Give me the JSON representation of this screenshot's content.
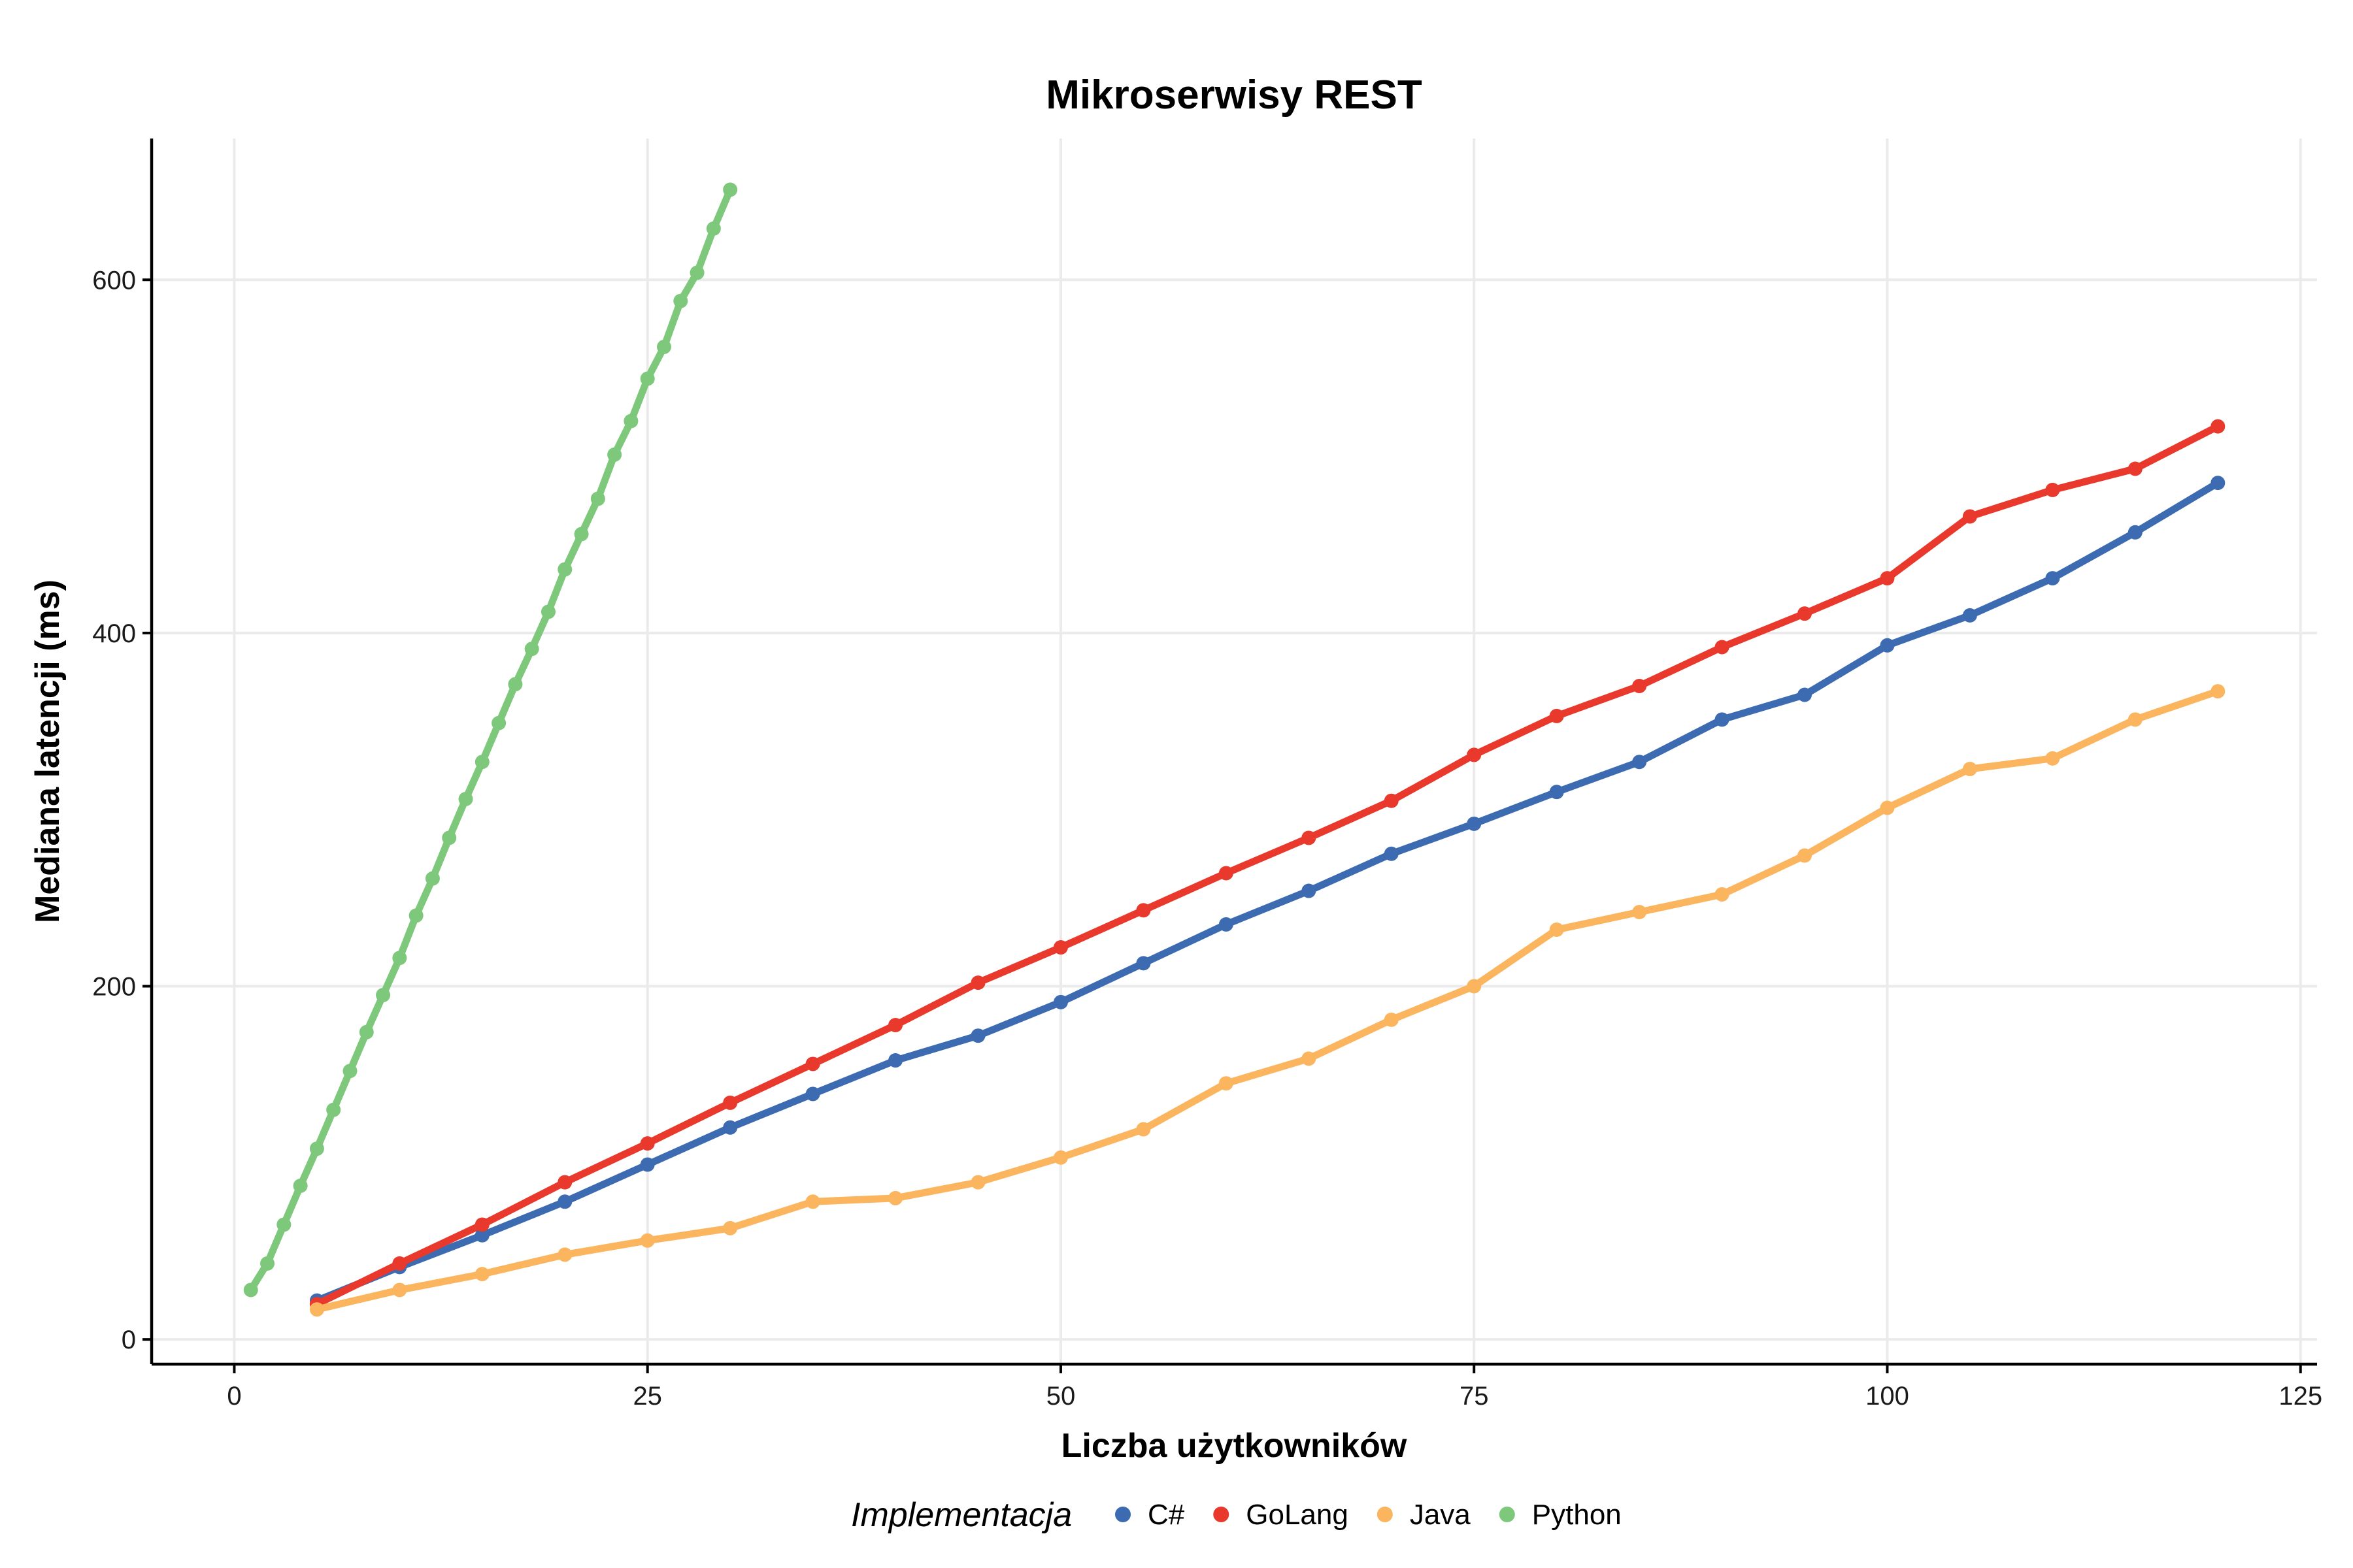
{
  "chart_data": {
    "type": "line",
    "title": "Mikroserwisy REST",
    "xlabel": "Liczba użytkowników",
    "ylabel": "Mediana latencji (ms)",
    "xlim": [
      -5,
      126
    ],
    "ylim": [
      -14,
      680
    ],
    "x_ticks": [
      0,
      25,
      50,
      75,
      100,
      125
    ],
    "y_ticks": [
      0,
      200,
      400,
      600
    ],
    "x_tick_labels": [
      "0",
      "25",
      "50",
      "75",
      "100",
      "125"
    ],
    "y_tick_labels": [
      "0",
      "200",
      "400",
      "600"
    ],
    "grid": true,
    "legend": {
      "title": "Implementacja",
      "position": "bottom"
    },
    "series": [
      {
        "name": "C#",
        "color": "#3c6bb1",
        "x": [
          5,
          10,
          15,
          20,
          25,
          30,
          35,
          40,
          45,
          50,
          55,
          60,
          65,
          70,
          75,
          80,
          85,
          90,
          95,
          100,
          105,
          110,
          115,
          120
        ],
        "y": [
          22,
          41,
          59,
          78,
          99,
          120,
          139,
          158,
          172,
          191,
          213,
          235,
          254,
          275,
          292,
          310,
          327,
          351,
          365,
          393,
          410,
          431,
          457,
          485
        ]
      },
      {
        "name": "GoLang",
        "color": "#e8392c",
        "x": [
          5,
          10,
          15,
          20,
          25,
          30,
          35,
          40,
          45,
          50,
          55,
          60,
          65,
          70,
          75,
          80,
          85,
          90,
          95,
          100,
          105,
          110,
          115,
          120
        ],
        "y": [
          20,
          43,
          65,
          89,
          111,
          134,
          156,
          178,
          202,
          222,
          243,
          264,
          284,
          305,
          331,
          353,
          370,
          392,
          411,
          431,
          466,
          481,
          493,
          517
        ]
      },
      {
        "name": "Java",
        "color": "#fbb55f",
        "x": [
          5,
          10,
          15,
          20,
          25,
          30,
          35,
          40,
          45,
          50,
          55,
          60,
          65,
          70,
          75,
          80,
          85,
          90,
          95,
          100,
          105,
          110,
          115,
          120
        ],
        "y": [
          17,
          28,
          37,
          48,
          56,
          63,
          78,
          80,
          89,
          103,
          119,
          145,
          159,
          181,
          200,
          232,
          242,
          252,
          274,
          301,
          323,
          329,
          351,
          367
        ]
      },
      {
        "name": "Python",
        "color": "#7ec87c",
        "x": [
          1,
          2,
          3,
          4,
          5,
          6,
          7,
          8,
          9,
          10,
          11,
          12,
          13,
          14,
          15,
          16,
          17,
          18,
          19,
          20,
          21,
          22,
          23,
          24,
          25,
          26,
          27,
          28,
          29,
          30
        ],
        "y": [
          28,
          43,
          65,
          87,
          108,
          130,
          152,
          174,
          195,
          216,
          240,
          261,
          284,
          306,
          327,
          349,
          371,
          391,
          412,
          436,
          456,
          476,
          501,
          520,
          544,
          562,
          588,
          604,
          629,
          651
        ]
      }
    ]
  }
}
